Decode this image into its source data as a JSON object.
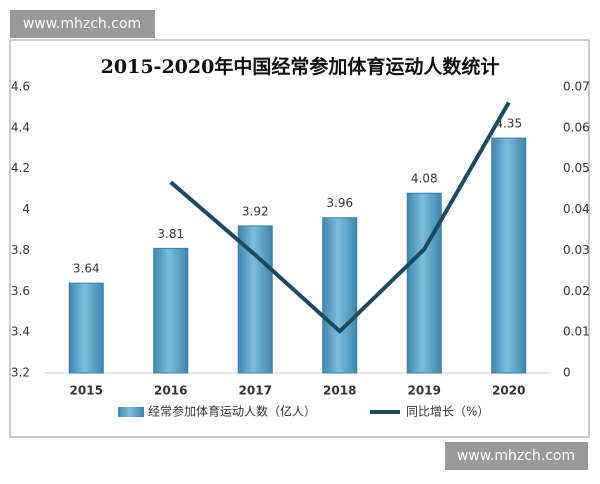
{
  "chart_data": {
    "type": "bar-line",
    "title": "2015-2020年中国经常参加体育运动人数统计",
    "categories": [
      "2015",
      "2016",
      "2017",
      "2018",
      "2019",
      "2020"
    ],
    "series": [
      {
        "name": "经常参加体育运动人数（亿人）",
        "type": "bar",
        "color": "#5aa3c8",
        "values": [
          3.64,
          3.81,
          3.92,
          3.96,
          4.08,
          4.35
        ]
      },
      {
        "name": "同比增长（%）",
        "type": "line",
        "axis": "y2",
        "color": "#1a4c60",
        "values": [
          null,
          0.0467,
          0.0289,
          0.0102,
          0.0303,
          0.0662
        ]
      }
    ],
    "ylim": [
      3.2,
      4.6
    ],
    "yticks": [
      3.2,
      3.4,
      3.6,
      3.8,
      4,
      4.2,
      4.4,
      4.6
    ],
    "y2lim": [
      0,
      0.07
    ],
    "y2ticks": [
      0,
      0.01,
      0.02,
      0.03,
      0.04,
      0.05,
      0.06,
      0.07
    ],
    "legend": "bottom"
  },
  "watermarks": [
    "www.mhzch.com",
    "www.mhzch.com"
  ]
}
